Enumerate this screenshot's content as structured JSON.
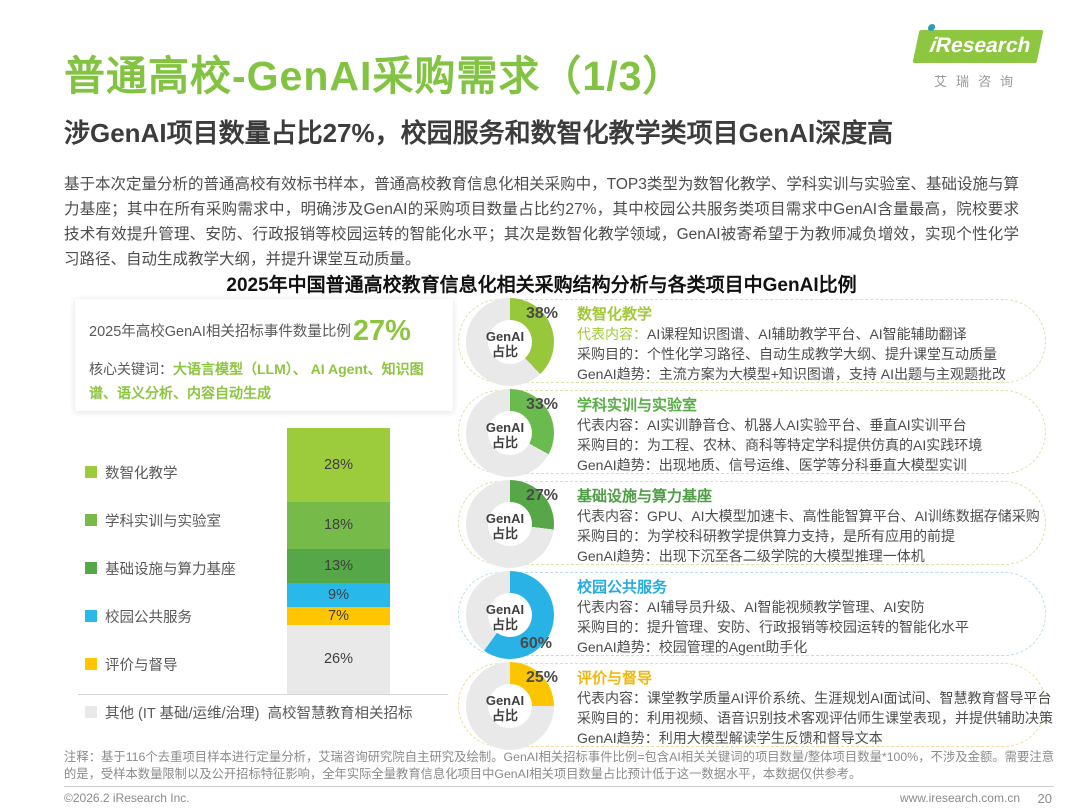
{
  "page": {
    "title": "普通高校-GenAI采购需求（1/3）",
    "subtitle": "涉GenAI项目数量占比27%，校园服务和数智化教学类项目GenAI深度高",
    "intro": "基于本次定量分析的普通高校有效标书样本，普通高校教育信息化相关采购中，TOP3类型为数智化教学、学科实训与实验室、基础设施与算力基座；其中在所有采购需求中，明确涉及GenAI的采购项目数量占比约27%，其中校园公共服务类项目需求中GenAI含量最高，院校要求技术有效提升管理、安防、行政报销等校园运转的智能化水平；其次是数智化教学领域，GenAI被寄希望于为教师减负增效，实现个性化学习路径、自动生成教学大纲，并提升课堂互动质量。",
    "chart_title": "2025年中国普通高校教育信息化相关采购结构分析与各类项目中GenAI比例"
  },
  "logo": {
    "brand_i": "i",
    "brand": "Research",
    "cn": "艾瑞咨询"
  },
  "info_box": {
    "label": "2025年高校GenAI相关招标事件数量比例",
    "value": "27%",
    "keywords_label": "核心关键词：",
    "keywords": "大语言模型（LLM）、 AI Agent、知识图谱、语义分析、内容自动生成"
  },
  "chart_data": {
    "type": "bar",
    "stacked": true,
    "title": "2025年中国普通高校教育信息化相关采购结构分析与各类项目中GenAI比例",
    "categories": [
      "高校智慧教育相关招标"
    ],
    "unit": "%",
    "xlabel": "高校智慧教育相关招标",
    "ylim": [
      0,
      101
    ],
    "series": [
      {
        "name": "数智化教学",
        "value": 28,
        "color": "#9CCB3B"
      },
      {
        "name": "学科实训与实验室",
        "value": 18,
        "color": "#76BB4A"
      },
      {
        "name": "基础设施与算力基座",
        "value": 13,
        "color": "#55A747"
      },
      {
        "name": "校园公共服务",
        "value": 9,
        "color": "#29B8EA"
      },
      {
        "name": "评价与督导",
        "value": 7,
        "color": "#FFC500"
      },
      {
        "name": "其他 (IT 基础/运维/治理)",
        "value": 26,
        "color": "#E9E9E9"
      }
    ],
    "genai_share_by_category": [
      {
        "name": "数智化教学",
        "pct": 38
      },
      {
        "name": "学科实训与实验室",
        "pct": 33
      },
      {
        "name": "基础设施与算力基座",
        "pct": 27
      },
      {
        "name": "校园公共服务",
        "pct": 60
      },
      {
        "name": "评价与督导",
        "pct": 25
      }
    ]
  },
  "donut_center": {
    "line1": "GenAI",
    "line2": "占比"
  },
  "cards": [
    {
      "title": "数智化教学",
      "pct": 38,
      "pct_label": "38%",
      "color": "#A3C93A",
      "donut_color": "#97C83C",
      "border_color": "#d8e3ae",
      "rep_label_color": "#A3C93A",
      "lines": [
        {
          "label": "代表内容：",
          "text": "AI课程知识图谱、AI辅助教学平台、AI智能辅助翻译"
        },
        {
          "label": "采购目的：",
          "text": "个性化学习路径、自动生成教学大纲、提升课堂互动质量"
        },
        {
          "label": "GenAI趋势：",
          "text": "主流方案为大模型+知识图谱，支持 AI出题与主观题批改"
        }
      ]
    },
    {
      "title": "学科实训与实验室",
      "pct": 33,
      "pct_label": "33%",
      "color": "#5BAD4A",
      "donut_color": "#6ABB4D",
      "border_color": "#d8e3ae",
      "lines": [
        {
          "label": "代表内容：",
          "text": "AI实训静音仓、机器人AI实验平台、垂直AI实训平台"
        },
        {
          "label": "采购目的：",
          "text": "为工程、农林、商科等特定学科提供仿真的AI实践环境"
        },
        {
          "label": "GenAI趋势：",
          "text": "出现地质、信号运维、医学等分科垂直大模型实训"
        }
      ]
    },
    {
      "title": "基础设施与算力基座",
      "pct": 27,
      "pct_label": "27%",
      "color": "#4F9E45",
      "donut_color": "#55A747",
      "border_color": "#d8e3ae",
      "lines": [
        {
          "label": "代表内容：",
          "text": "GPU、AI大模型加速卡、高性能智算平台、AI训练数据存储采购"
        },
        {
          "label": "采购目的：",
          "text": "为学校科研教学提供算力支持，是所有应用的前提"
        },
        {
          "label": "GenAI趋势：",
          "text": "出现下沉至各二级学院的大模型推理一体机"
        }
      ]
    },
    {
      "title": "校园公共服务",
      "pct": 60,
      "pct_label": "60%",
      "color": "#29ABE2",
      "donut_color": "#29B2E6",
      "border_color": "#b8dff0",
      "lines": [
        {
          "label": "代表内容：",
          "text": "AI辅导员升级、AI智能视频教学管理、AI安防"
        },
        {
          "label": "采购目的：",
          "text": "提升管理、安防、行政报销等校园运转的智能化水平"
        },
        {
          "label": "GenAI趋势：",
          "text": "校园管理的Agent助手化"
        }
      ]
    },
    {
      "title": "评价与督导",
      "pct": 25,
      "pct_label": "25%",
      "color": "#EFB810",
      "donut_color": "#FBC500",
      "border_color": "#eedc9f",
      "lines": [
        {
          "label": "代表内容：",
          "text": "课堂教学质量AI评价系统、生涯规划AI面试间、智慧教育督导平台"
        },
        {
          "label": "采购目的：",
          "text": "利用视频、语音识别技术客观评估师生课堂表现，并提供辅助决策"
        },
        {
          "label": "GenAI趋势：",
          "text": "利用大模型解读学生反馈和督导文本"
        }
      ]
    }
  ],
  "footer": {
    "note": "注释：基于116个去重项目样本进行定量分析，艾瑞咨询研究院自主研究及绘制。GenAI相关招标事件比例=包含AI相关关键词的项目数量/整体项目数量*100%，不涉及金额。需要注意的是，受样本数量限制以及公开招标特征影响，全年实际全量教育信息化项目中GenAI相关项目数量占比预计低于这一数据水平，本数据仅供参考。",
    "copyright": "©2026.2 iResearch Inc.",
    "site": "www.iresearch.com.cn",
    "page_number": "20"
  }
}
